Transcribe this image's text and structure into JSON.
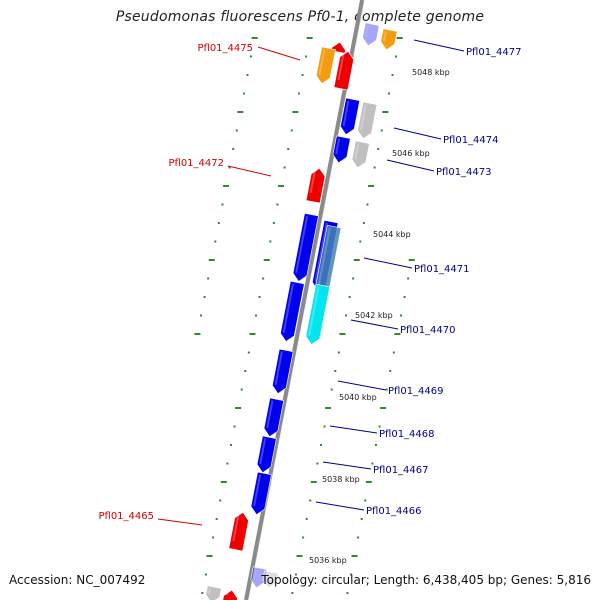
{
  "title": "Pseudomonas fluorescens Pf0-1, complete genome",
  "accession_text": "Accession: NC_007492",
  "topology_text": "Topology: circular; Length: 6,438,405 bp; Genes: 5,816",
  "colors": {
    "backbone": "#8a8a8a",
    "tick": "#2e8b2e",
    "forward_label": "#d60000",
    "reverse_label": "#00008b",
    "blue": "#0000ee",
    "red": "#ee0000",
    "orange": "#f39c12",
    "gray": "#c0c0c0",
    "cyan": "#00e5ee",
    "steel": "#4682b4"
  },
  "kbp_markers": [
    "5048 kbp",
    "5046 kbp",
    "5044 kbp",
    "5042 kbp",
    "5040 kbp",
    "5038 kbp",
    "5036 kbp"
  ],
  "gene_labels": [
    {
      "text": "Pfl01_4477",
      "strand": "reverse"
    },
    {
      "text": "Pfl01_4475",
      "strand": "forward"
    },
    {
      "text": "Pfl01_4474",
      "strand": "reverse"
    },
    {
      "text": "Pfl01_4473",
      "strand": "reverse"
    },
    {
      "text": "Pfl01_4472",
      "strand": "forward"
    },
    {
      "text": "Pfl01_4471",
      "strand": "reverse"
    },
    {
      "text": "Pfl01_4470",
      "strand": "reverse"
    },
    {
      "text": "Pfl01_4469",
      "strand": "reverse"
    },
    {
      "text": "Pfl01_4468",
      "strand": "reverse"
    },
    {
      "text": "Pfl01_4467",
      "strand": "reverse"
    },
    {
      "text": "Pfl01_4466",
      "strand": "reverse"
    },
    {
      "text": "Pfl01_4465",
      "strand": "forward"
    }
  ]
}
